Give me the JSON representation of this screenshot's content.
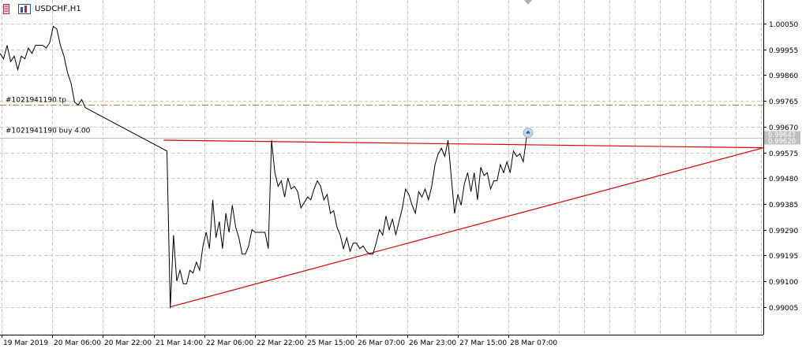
{
  "window": {
    "symbol_title": "USDCHF,H1"
  },
  "colors": {
    "price_line": "#000000",
    "trendline": "#dd0000",
    "tp_line": "#e07030",
    "grid": "#c8c8c8",
    "tag_bg": "#c0c0c0"
  },
  "trade": {
    "tp_label": "#1021941190 tp",
    "order_label": "#1021941190 buy 4.00"
  },
  "price_tags": {
    "upper": "0.99647",
    "lower": "0.99620"
  },
  "chart_data": {
    "type": "line",
    "title": "USDCHF,H1",
    "ylim": [
      0.9896,
      1.001
    ],
    "y_ticks": [
      "1.00050",
      "0.99955",
      "0.99860",
      "0.99765",
      "0.99670",
      "0.99575",
      "0.99480",
      "0.99385",
      "0.99290",
      "0.99195",
      "0.99100",
      "0.99005"
    ],
    "x_ticks": [
      "19 Mar 2019",
      "20 Mar 06:00",
      "20 Mar 22:00",
      "21 Mar 14:00",
      "22 Mar 06:00",
      "22 Mar 22:00",
      "25 Mar 15:00",
      "26 Mar 07:00",
      "26 Mar 23:00",
      "27 Mar 15:00",
      "28 Mar 07:00"
    ],
    "grid": true,
    "levels": {
      "take_profit": 0.9975,
      "buy_entry": 0.9963
    },
    "series": [
      {
        "values": [
          0.9994,
          0.9992,
          0.9997,
          0.9991,
          0.9993,
          0.9988,
          0.9993,
          0.9992,
          0.9996,
          0.9994,
          0.9997,
          0.9997,
          0.9997,
          0.9996,
          0.9998,
          1.0004,
          1.0003,
          0.9997,
          0.9993,
          0.9987,
          0.9983,
          0.9976,
          0.9975,
          0.9977,
          0.9974,
          0.9958,
          0.99,
          0.9927,
          0.991,
          0.9914,
          0.9909,
          0.9909,
          0.9914,
          0.9913,
          0.9917,
          0.9914,
          0.9923,
          0.9928,
          0.9922,
          0.994,
          0.9926,
          0.9932,
          0.9922,
          0.9935,
          0.9928,
          0.9938,
          0.993,
          0.9926,
          0.992,
          0.992,
          0.9923,
          0.9929,
          0.9928,
          0.9928,
          0.9928,
          0.9928,
          0.9922,
          0.9962,
          0.995,
          0.9945,
          0.9947,
          0.9941,
          0.9948,
          0.9944,
          0.9945,
          0.9943,
          0.9937,
          0.9939,
          0.9941,
          0.994,
          0.9944,
          0.9947,
          0.9945,
          0.994,
          0.9942,
          0.9935,
          0.9936,
          0.993,
          0.9927,
          0.9922,
          0.9926,
          0.9921,
          0.9924,
          0.9924,
          0.9922,
          0.9923,
          0.9921,
          0.992,
          0.992,
          0.9924,
          0.9929,
          0.9927,
          0.9934,
          0.9929,
          0.9933,
          0.9927,
          0.9932,
          0.9937,
          0.9944,
          0.9942,
          0.9938,
          0.9935,
          0.9943,
          0.9941,
          0.9944,
          0.994,
          0.9945,
          0.9953,
          0.9957,
          0.9959,
          0.9956,
          0.9962,
          0.9948,
          0.9935,
          0.9942,
          0.9938,
          0.9946,
          0.995,
          0.9943,
          0.995,
          0.994,
          0.9952,
          0.9949,
          0.995,
          0.9944,
          0.9947,
          0.9947,
          0.9953,
          0.995,
          0.9954,
          0.995,
          0.9958,
          0.9956,
          0.9957,
          0.9954,
          0.9963
        ]
      }
    ]
  }
}
